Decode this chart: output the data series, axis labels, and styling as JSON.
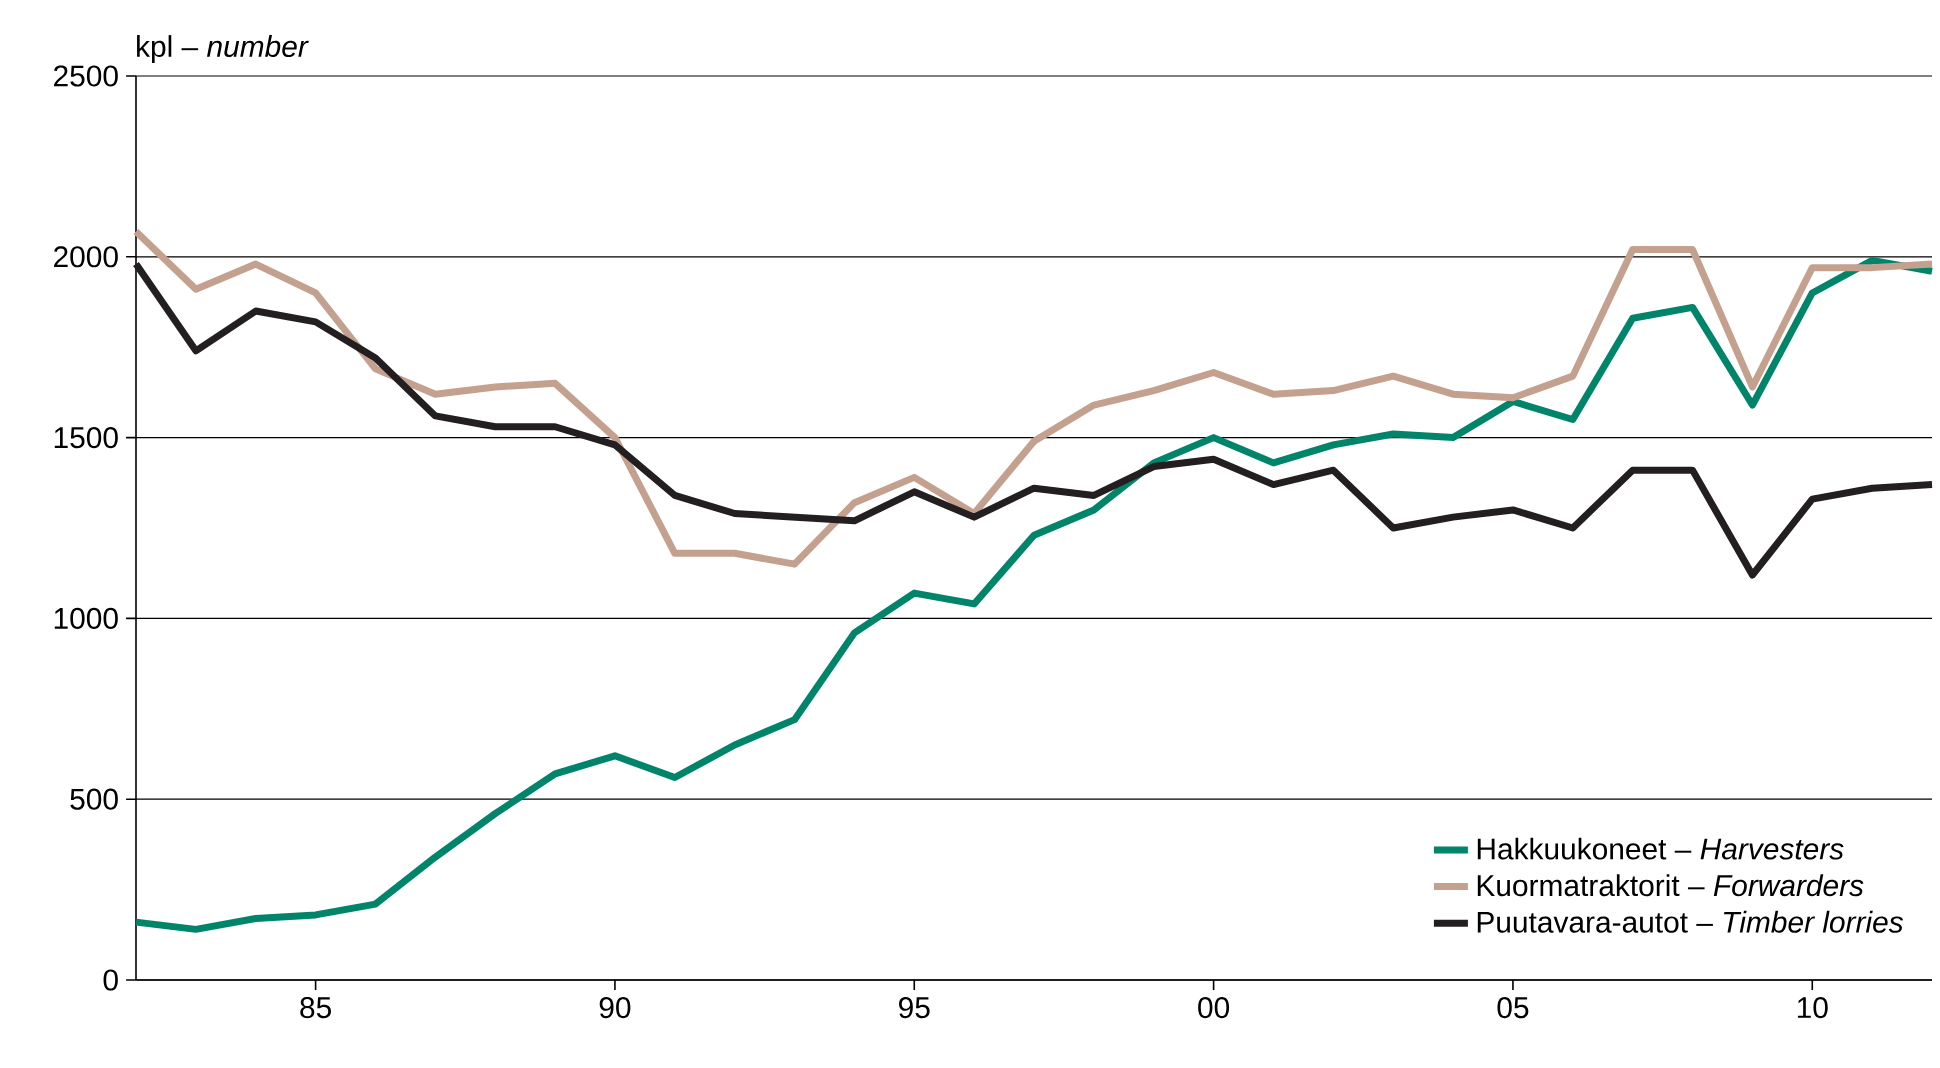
{
  "chart_data": {
    "type": "line",
    "ylabel": "kpl – *number*",
    "x": [
      1982,
      1983,
      1984,
      1985,
      1986,
      1987,
      1988,
      1989,
      1990,
      1991,
      1992,
      1993,
      1994,
      1995,
      1996,
      1997,
      1998,
      1999,
      2000,
      2001,
      2002,
      2003,
      2004,
      2005,
      2006,
      2007,
      2008,
      2009,
      2010,
      2011,
      2012
    ],
    "series": [
      {
        "name": "Hakkuukoneet – *Harvesters*",
        "color": "#00856a",
        "values": [
          160,
          140,
          170,
          180,
          210,
          340,
          460,
          570,
          620,
          560,
          650,
          720,
          960,
          1070,
          1040,
          1230,
          1300,
          1430,
          1500,
          1430,
          1480,
          1510,
          1500,
          1600,
          1550,
          1830,
          1860,
          1590,
          1900,
          1990,
          1960
        ]
      },
      {
        "name": "Kuormatraktorit – *Forwarders*",
        "color": "#c4a08f",
        "values": [
          2070,
          1910,
          1980,
          1900,
          1690,
          1620,
          1640,
          1650,
          1500,
          1180,
          1180,
          1150,
          1320,
          1390,
          1290,
          1490,
          1590,
          1630,
          1680,
          1620,
          1630,
          1670,
          1620,
          1610,
          1670,
          2020,
          2020,
          1640,
          1970,
          1970,
          1980
        ]
      },
      {
        "name": "Puutavara-autot – *Timber lorries*",
        "color": "#231f20",
        "values": [
          1980,
          1740,
          1850,
          1820,
          1720,
          1560,
          1530,
          1530,
          1480,
          1340,
          1290,
          1280,
          1270,
          1350,
          1280,
          1360,
          1340,
          1420,
          1440,
          1370,
          1410,
          1250,
          1280,
          1300,
          1250,
          1410,
          1410,
          1120,
          1330,
          1360,
          1370
        ]
      }
    ],
    "xlim": [
      1982,
      2012
    ],
    "ylim": [
      0,
      2500
    ],
    "xticks": [
      {
        "value": 1985,
        "label": "85"
      },
      {
        "value": 1990,
        "label": "90"
      },
      {
        "value": 1995,
        "label": "95"
      },
      {
        "value": 2000,
        "label": "00"
      },
      {
        "value": 2005,
        "label": "05"
      },
      {
        "value": 2010,
        "label": "10"
      }
    ],
    "yticks": [
      0,
      500,
      1000,
      1500,
      2000,
      2500
    ],
    "grid": "y",
    "legend": "bottom right",
    "line_style": "solid",
    "marker": "none"
  }
}
